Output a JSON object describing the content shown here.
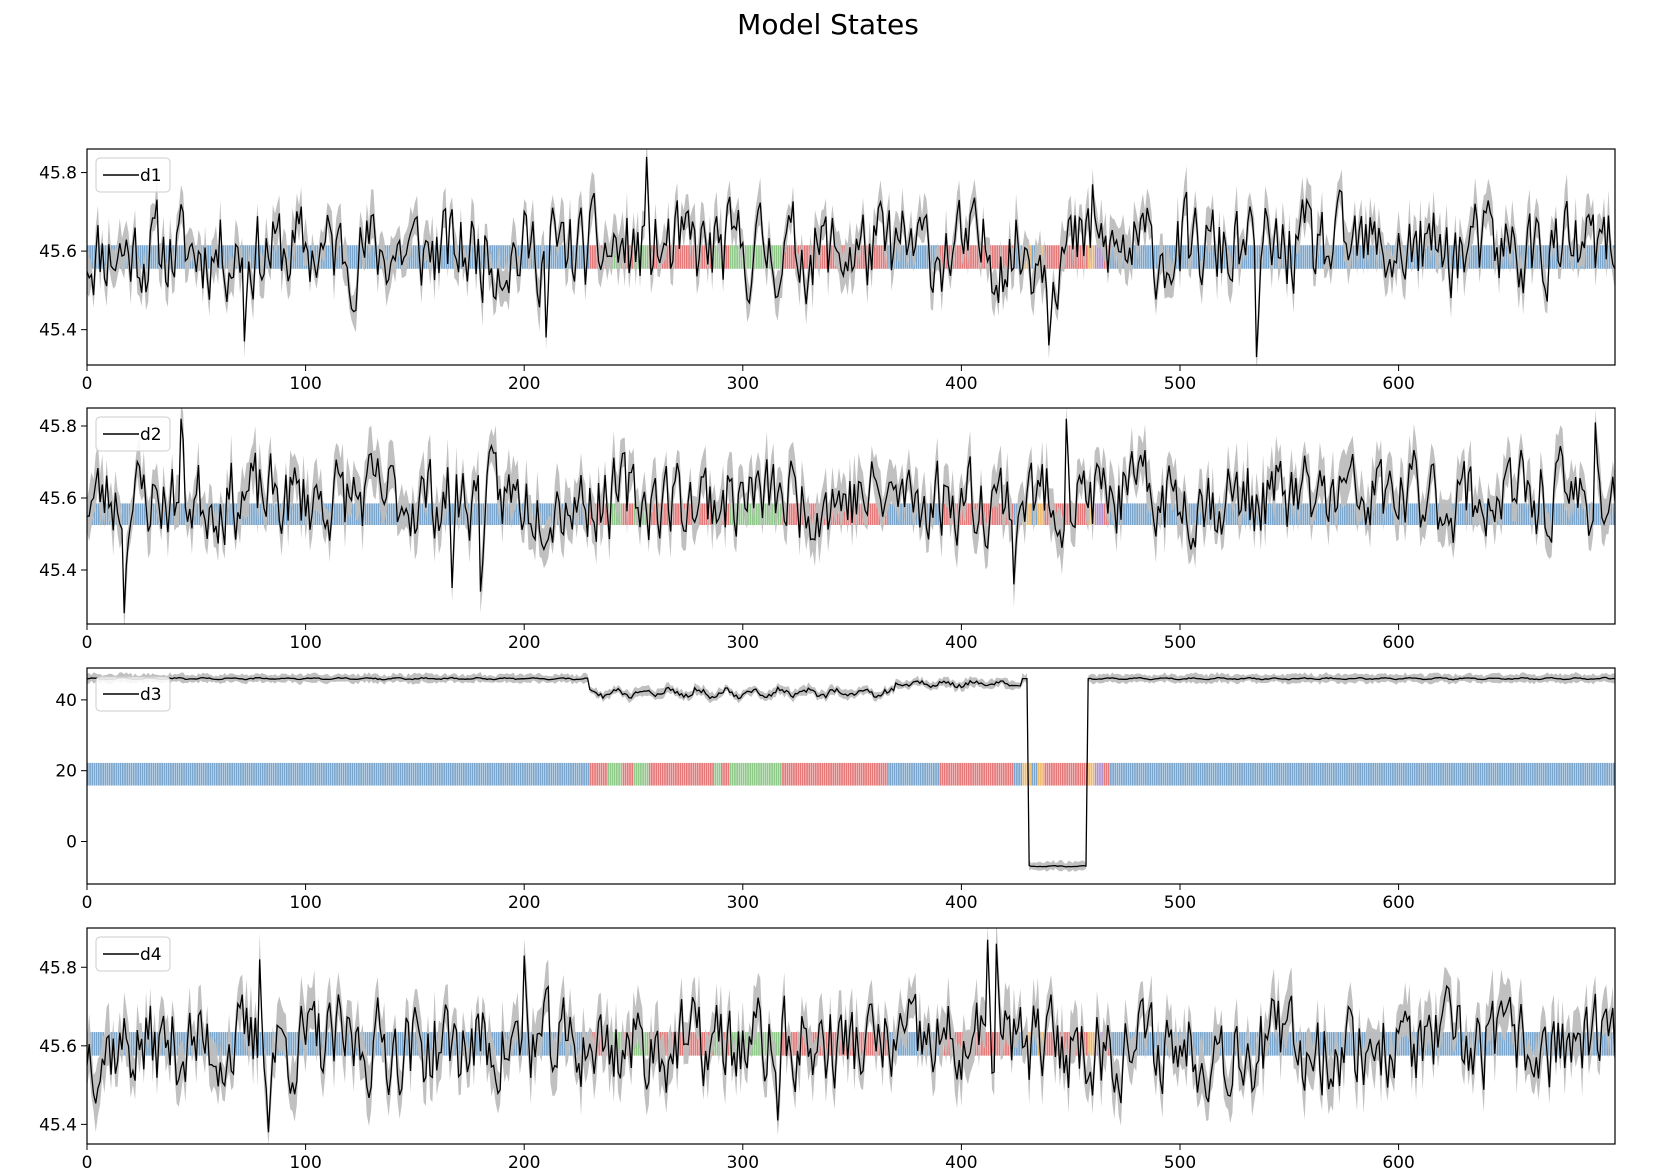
{
  "figure": {
    "title": "Model States"
  },
  "state_colors": {
    "blue": "#6f9ec9",
    "red": "#e36c6e",
    "green": "#85c47f",
    "orange": "#f0b35a",
    "purple": "#a98ac9"
  },
  "series_colors": {
    "line": "#000000",
    "band": "#bdbdbd"
  },
  "chart_data": [
    {
      "type": "line",
      "legend": "d1",
      "legend_position": "top-left",
      "xlim": [
        0,
        699
      ],
      "ylim": [
        45.31,
        45.86
      ],
      "xticks": [
        0,
        100,
        200,
        300,
        400,
        500,
        600
      ],
      "yticks": [
        45.4,
        45.6,
        45.8
      ],
      "ytick_labels": [
        "45.4",
        "45.6",
        "45.8"
      ],
      "state_band_y": [
        45.555,
        45.615
      ],
      "band_width": 0.05,
      "signal": {
        "base": 45.6,
        "amp": 0.1,
        "seed": 11,
        "spikes": [
          [
            72,
            45.37
          ],
          [
            210,
            45.38
          ],
          [
            256,
            45.84
          ],
          [
            440,
            45.36
          ],
          [
            535,
            45.33
          ],
          [
            460,
            45.77
          ]
        ]
      },
      "series": [
        {
          "name": "d1"
        }
      ]
    },
    {
      "type": "line",
      "legend": "d2",
      "legend_position": "top-left",
      "xlim": [
        0,
        699
      ],
      "ylim": [
        45.25,
        45.85
      ],
      "xticks": [
        0,
        100,
        200,
        300,
        400,
        500,
        600
      ],
      "yticks": [
        45.4,
        45.6,
        45.8
      ],
      "ytick_labels": [
        "45.4",
        "45.6",
        "45.8"
      ],
      "state_band_y": [
        45.525,
        45.585
      ],
      "band_width": 0.06,
      "signal": {
        "base": 45.6,
        "amp": 0.1,
        "seed": 23,
        "spikes": [
          [
            17,
            45.28
          ],
          [
            43,
            45.82
          ],
          [
            167,
            45.35
          ],
          [
            180,
            45.34
          ],
          [
            424,
            45.36
          ],
          [
            448,
            45.82
          ],
          [
            690,
            45.81
          ]
        ]
      },
      "series": [
        {
          "name": "d2"
        }
      ]
    },
    {
      "type": "line",
      "legend": "d3",
      "legend_position": "top-left",
      "xlim": [
        0,
        699
      ],
      "ylim": [
        -12,
        49
      ],
      "xticks": [
        0,
        100,
        200,
        300,
        400,
        500,
        600
      ],
      "yticks": [
        0,
        20,
        40
      ],
      "ytick_labels": [
        "0",
        "20",
        "40"
      ],
      "state_band_y": [
        15.8,
        22.2
      ],
      "band_width": 1.2,
      "segments": [
        {
          "from": 0,
          "to": 230,
          "level": 46,
          "noise": 0.3
        },
        {
          "from": 230,
          "to": 370,
          "level": 42,
          "noise": 1.6
        },
        {
          "from": 370,
          "to": 428,
          "level": 44.5,
          "noise": 1.0
        },
        {
          "from": 428,
          "to": 430,
          "level": 46,
          "noise": 0
        },
        {
          "from": 431,
          "to": 457,
          "level": -7,
          "noise": 0.2
        },
        {
          "from": 458,
          "to": 699,
          "level": 46,
          "noise": 0.3
        }
      ],
      "series": [
        {
          "name": "d3"
        }
      ]
    },
    {
      "type": "line",
      "legend": "d4",
      "legend_position": "top-left",
      "xlim": [
        0,
        699
      ],
      "ylim": [
        45.35,
        45.9
      ],
      "xticks": [
        0,
        100,
        200,
        300,
        400,
        500,
        600
      ],
      "yticks": [
        45.4,
        45.6,
        45.8
      ],
      "ytick_labels": [
        "45.4",
        "45.6",
        "45.8"
      ],
      "state_band_y": [
        45.575,
        45.635
      ],
      "band_width": 0.06,
      "signal": {
        "base": 45.6,
        "amp": 0.1,
        "seed": 37,
        "spikes": [
          [
            83,
            45.38
          ],
          [
            79,
            45.82
          ],
          [
            200,
            45.83
          ],
          [
            316,
            45.41
          ],
          [
            412,
            45.87
          ],
          [
            416,
            45.86
          ]
        ]
      },
      "series": [
        {
          "name": "d4"
        }
      ]
    }
  ],
  "state_sequence": [
    {
      "from": 0,
      "to": 230,
      "state": "blue"
    },
    {
      "from": 230,
      "to": 238,
      "state": "red"
    },
    {
      "from": 238,
      "to": 245,
      "state": "green"
    },
    {
      "from": 245,
      "to": 250,
      "state": "red"
    },
    {
      "from": 250,
      "to": 257,
      "state": "green"
    },
    {
      "from": 257,
      "to": 287,
      "state": "red"
    },
    {
      "from": 287,
      "to": 290,
      "state": "green"
    },
    {
      "from": 290,
      "to": 294,
      "state": "red"
    },
    {
      "from": 294,
      "to": 318,
      "state": "green"
    },
    {
      "from": 318,
      "to": 366,
      "state": "red"
    },
    {
      "from": 366,
      "to": 390,
      "state": "blue"
    },
    {
      "from": 390,
      "to": 424,
      "state": "red"
    },
    {
      "from": 424,
      "to": 428,
      "state": "blue"
    },
    {
      "from": 428,
      "to": 432,
      "state": "orange"
    },
    {
      "from": 432,
      "to": 435,
      "state": "blue"
    },
    {
      "from": 435,
      "to": 438,
      "state": "orange"
    },
    {
      "from": 438,
      "to": 458,
      "state": "red"
    },
    {
      "from": 458,
      "to": 461,
      "state": "orange"
    },
    {
      "from": 461,
      "to": 465,
      "state": "purple"
    },
    {
      "from": 465,
      "to": 468,
      "state": "red"
    },
    {
      "from": 468,
      "to": 699,
      "state": "blue"
    }
  ]
}
